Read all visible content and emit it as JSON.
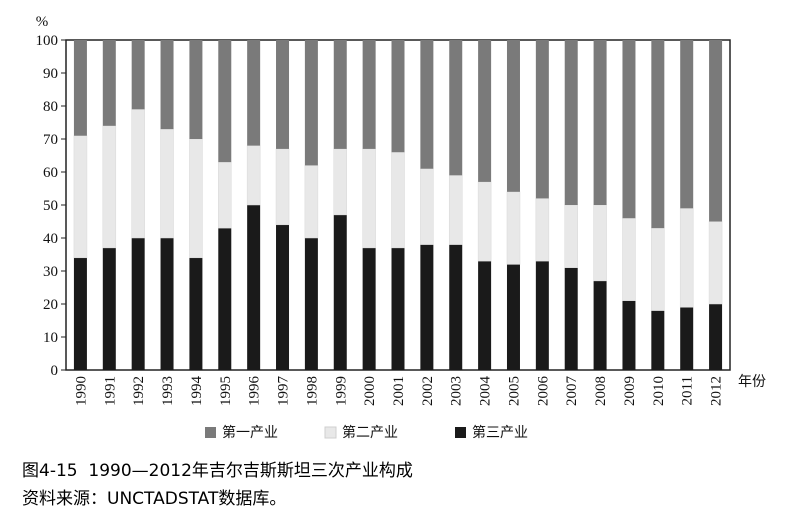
{
  "chart_data": {
    "type": "bar",
    "stacked": true,
    "x": [
      1990,
      1991,
      1992,
      1993,
      1994,
      1995,
      1996,
      1997,
      1998,
      1999,
      2000,
      2001,
      2002,
      2003,
      2004,
      2005,
      2006,
      2007,
      2008,
      2009,
      2010,
      2011,
      2012
    ],
    "series": [
      {
        "name": "第三产业",
        "color": "#1a1a1a",
        "values": [
          34,
          37,
          40,
          40,
          34,
          43,
          50,
          44,
          40,
          47,
          37,
          37,
          38,
          38,
          33,
          32,
          33,
          31,
          27,
          21,
          18,
          19,
          20
        ]
      },
      {
        "name": "第二产业",
        "color": "#e8e8e8",
        "values": [
          37,
          37,
          39,
          33,
          36,
          20,
          18,
          23,
          22,
          20,
          30,
          29,
          23,
          21,
          24,
          22,
          19,
          19,
          23,
          25,
          25,
          30,
          25
        ]
      },
      {
        "name": "第一产业",
        "color": "#7a7a7a",
        "values": [
          29,
          26,
          21,
          27,
          30,
          37,
          32,
          33,
          38,
          33,
          33,
          34,
          39,
          41,
          43,
          46,
          48,
          50,
          50,
          54,
          57,
          51,
          55
        ]
      }
    ],
    "legend_order": [
      "第一产业",
      "第二产业",
      "第三产业"
    ],
    "ylim": [
      0,
      100
    ],
    "yticks": [
      0,
      10,
      20,
      30,
      40,
      50,
      60,
      70,
      80,
      90,
      100
    ],
    "ylabel": "%",
    "xlabel": "年份",
    "grid": false,
    "legend_position": "bottom"
  },
  "caption": {
    "title": "图4-15  1990—2012年吉尔吉斯斯坦三次产业构成",
    "source": "资料来源：UNCTADSTAT数据库。"
  }
}
